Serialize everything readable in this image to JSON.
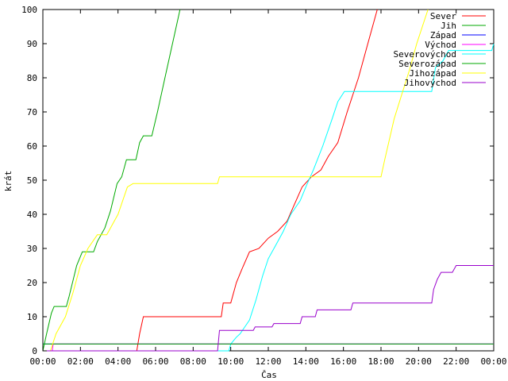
{
  "chart_data": {
    "type": "line",
    "title": "",
    "xlabel": "Čas",
    "ylabel": "krát",
    "xlim": [
      0,
      24
    ],
    "ylim": [
      0,
      100
    ],
    "x_ticks": [
      0,
      2,
      4,
      6,
      8,
      10,
      12,
      14,
      16,
      18,
      20,
      22,
      24
    ],
    "x_tick_labels": [
      "00:00",
      "02:00",
      "04:00",
      "06:00",
      "08:00",
      "10:00",
      "12:00",
      "14:00",
      "16:00",
      "18:00",
      "20:00",
      "22:00",
      "00:00"
    ],
    "y_ticks": [
      0,
      10,
      20,
      30,
      40,
      50,
      60,
      70,
      80,
      90,
      100
    ],
    "legend_position": "top-right",
    "grid": false,
    "series": [
      {
        "name": "Sever",
        "color": "#ff0000",
        "points": [
          [
            5.0,
            0
          ],
          [
            5.15,
            5
          ],
          [
            5.35,
            10
          ],
          [
            9.5,
            10
          ],
          [
            9.6,
            14
          ],
          [
            10.0,
            14
          ],
          [
            10.3,
            20
          ],
          [
            10.6,
            24
          ],
          [
            11.0,
            29
          ],
          [
            11.5,
            30
          ],
          [
            12.0,
            33
          ],
          [
            12.5,
            35
          ],
          [
            13.0,
            38
          ],
          [
            13.4,
            43
          ],
          [
            13.8,
            48
          ],
          [
            14.3,
            51
          ],
          [
            14.8,
            53
          ],
          [
            15.2,
            57
          ],
          [
            15.7,
            61
          ],
          [
            16.2,
            70
          ],
          [
            16.8,
            80
          ],
          [
            17.3,
            90
          ],
          [
            17.8,
            100
          ]
        ]
      },
      {
        "name": "Jih",
        "color": "#00aa00",
        "points": [
          [
            0.0,
            0
          ],
          [
            0.2,
            5
          ],
          [
            0.45,
            11
          ],
          [
            0.6,
            13
          ],
          [
            1.25,
            13
          ],
          [
            1.4,
            16
          ],
          [
            1.8,
            25
          ],
          [
            2.1,
            29
          ],
          [
            2.7,
            29
          ],
          [
            2.9,
            32
          ],
          [
            3.3,
            36
          ],
          [
            3.6,
            41
          ],
          [
            3.95,
            49
          ],
          [
            4.2,
            51
          ],
          [
            4.45,
            56
          ],
          [
            4.95,
            56
          ],
          [
            5.15,
            61
          ],
          [
            5.35,
            63
          ],
          [
            5.8,
            63
          ],
          [
            6.1,
            70
          ],
          [
            6.5,
            80
          ],
          [
            6.9,
            90
          ],
          [
            7.3,
            100
          ]
        ]
      },
      {
        "name": "Západ",
        "color": "#0000ff",
        "points": [
          [
            0.0,
            2
          ],
          [
            24.0,
            2
          ]
        ]
      },
      {
        "name": "Východ",
        "color": "#ff00ff",
        "points": [
          [
            0.5,
            0
          ],
          [
            0.55,
            2
          ],
          [
            24.0,
            2
          ]
        ]
      },
      {
        "name": "Severovýchod",
        "color": "#00ffff",
        "points": [
          [
            0.0,
            0
          ],
          [
            9.9,
            0
          ],
          [
            10.0,
            2
          ],
          [
            10.3,
            4
          ],
          [
            10.5,
            5
          ],
          [
            10.75,
            7
          ],
          [
            11.0,
            9
          ],
          [
            11.35,
            15
          ],
          [
            11.7,
            22
          ],
          [
            12.0,
            27
          ],
          [
            12.4,
            31
          ],
          [
            12.8,
            35
          ],
          [
            13.2,
            40
          ],
          [
            13.7,
            44
          ],
          [
            14.0,
            48
          ],
          [
            14.4,
            53
          ],
          [
            14.9,
            60
          ],
          [
            15.4,
            68
          ],
          [
            15.7,
            73
          ],
          [
            16.05,
            76
          ],
          [
            20.7,
            76
          ],
          [
            20.9,
            83
          ],
          [
            21.3,
            85
          ],
          [
            21.6,
            88
          ],
          [
            23.9,
            88
          ],
          [
            24.0,
            90
          ]
        ]
      },
      {
        "name": "Severozápad",
        "color": "#00aa00",
        "points": [
          [
            0.0,
            2
          ],
          [
            24.0,
            2
          ]
        ]
      },
      {
        "name": "Jihozápad",
        "color": "#ffff00",
        "points": [
          [
            0.4,
            0
          ],
          [
            0.7,
            5
          ],
          [
            1.2,
            10
          ],
          [
            1.6,
            17
          ],
          [
            2.0,
            25
          ],
          [
            2.4,
            30
          ],
          [
            2.9,
            34
          ],
          [
            3.4,
            34
          ],
          [
            3.7,
            37
          ],
          [
            4.0,
            40
          ],
          [
            4.5,
            48
          ],
          [
            4.8,
            49
          ],
          [
            9.3,
            49
          ],
          [
            9.4,
            51
          ],
          [
            18.0,
            51
          ],
          [
            18.2,
            56
          ],
          [
            18.7,
            68
          ],
          [
            19.1,
            75
          ],
          [
            19.5,
            82
          ],
          [
            19.9,
            90
          ],
          [
            20.5,
            100
          ]
        ]
      },
      {
        "name": "Jihovýchod",
        "color": "#9900cc",
        "points": [
          [
            0.0,
            0
          ],
          [
            9.3,
            0
          ],
          [
            9.4,
            6
          ],
          [
            11.2,
            6
          ],
          [
            11.3,
            7
          ],
          [
            12.2,
            7
          ],
          [
            12.3,
            8
          ],
          [
            13.7,
            8
          ],
          [
            13.8,
            10
          ],
          [
            14.5,
            10
          ],
          [
            14.6,
            12
          ],
          [
            16.4,
            12
          ],
          [
            16.5,
            14
          ],
          [
            20.7,
            14
          ],
          [
            20.8,
            18
          ],
          [
            21.0,
            21
          ],
          [
            21.2,
            23
          ],
          [
            21.8,
            23
          ],
          [
            22.0,
            25
          ],
          [
            24.0,
            25
          ]
        ]
      }
    ]
  }
}
